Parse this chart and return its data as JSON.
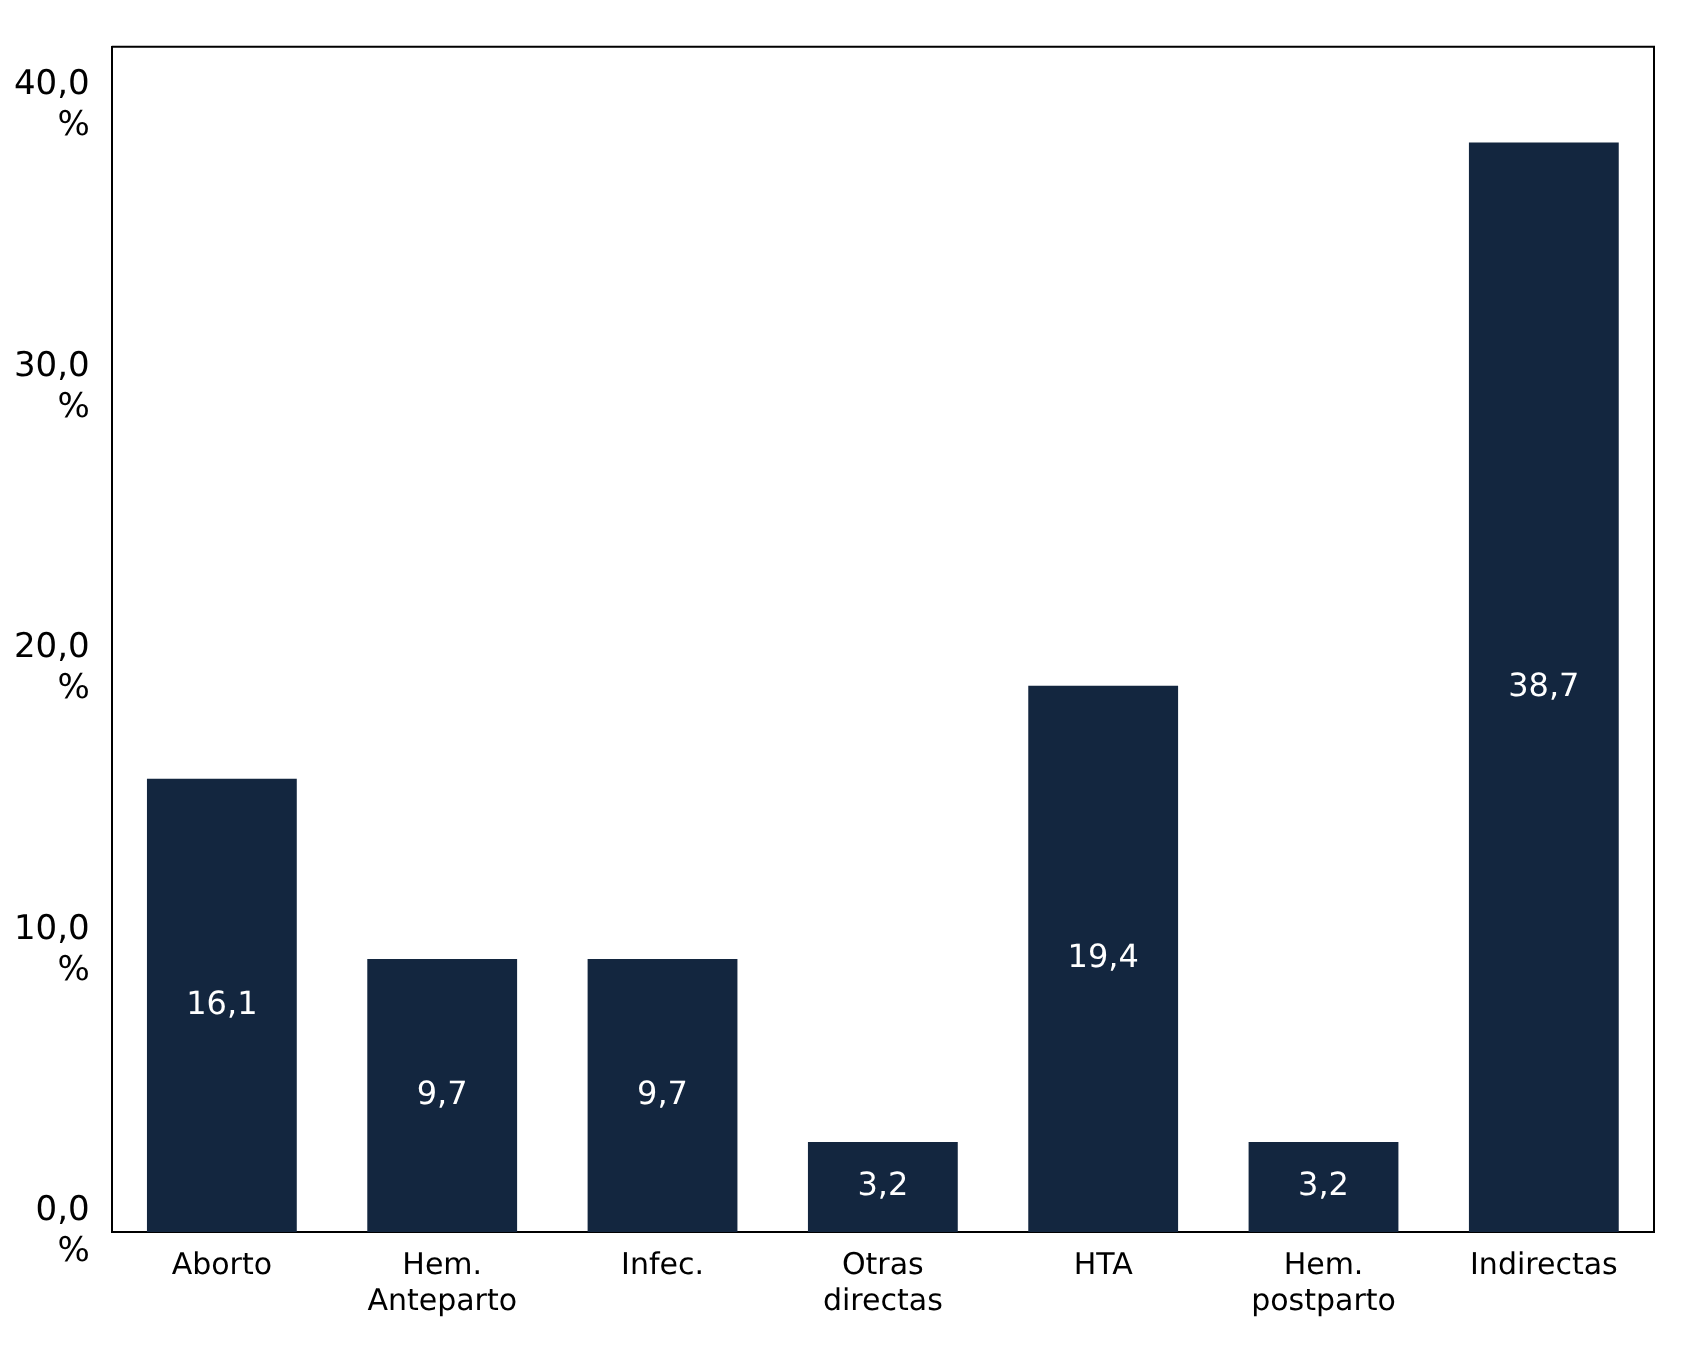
{
  "chart_data": {
    "type": "bar",
    "categories": [
      "Aborto",
      "Hem. Anteparto",
      "Infec.",
      "Otras directas",
      "HTA",
      "Hem. postparto",
      "Indirectas"
    ],
    "values": [
      16.1,
      9.7,
      9.7,
      3.2,
      19.4,
      3.2,
      38.7
    ],
    "value_labels": [
      "16,1",
      "9,7",
      "9,7",
      "3,2",
      "19,4",
      "3,2",
      "38,7"
    ],
    "color": "#13263f",
    "ylim": [
      0,
      42.1
    ],
    "yticks": [
      {
        "value": 0,
        "label": "0,0 %"
      },
      {
        "value": 10,
        "label": "10,0 %"
      },
      {
        "value": 20,
        "label": "20,0 %"
      },
      {
        "value": 30,
        "label": "30,0 %"
      },
      {
        "value": 40,
        "label": "40,0 %"
      }
    ],
    "grid": false,
    "legend": false
  }
}
